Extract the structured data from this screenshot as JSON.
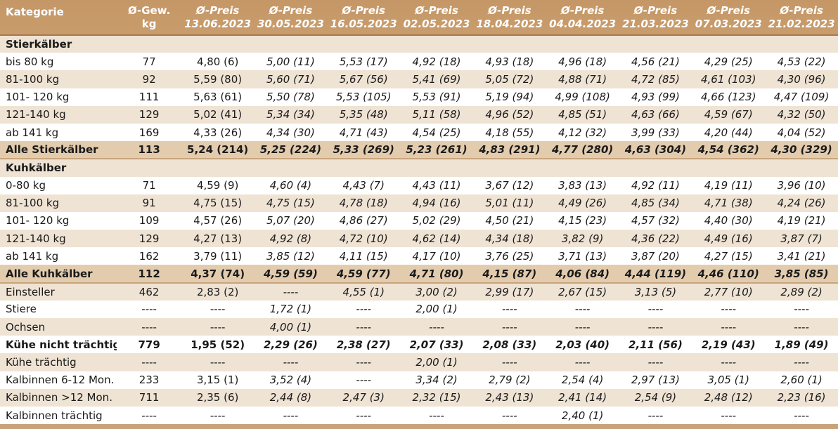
{
  "header": {
    "kategorie": "Kategorie",
    "gew_line1": "Ø-Gew.",
    "gew_line2": "kg",
    "preis_label": "Ø-Preis",
    "dates": [
      "13.06.2023",
      "30.05.2023",
      "16.05.2023",
      "02.05.2023",
      "18.04.2023",
      "04.04.2023",
      "21.03.2023",
      "07.03.2023",
      "21.02.2023"
    ]
  },
  "rows": [
    {
      "type": "section",
      "label": "Stierkälber",
      "gew": "",
      "values": [
        "",
        "",
        "",
        "",
        "",
        "",
        "",
        "",
        ""
      ]
    },
    {
      "type": "odd",
      "label": "bis 80 kg",
      "gew": "77",
      "values": [
        "4,80 (6)",
        "5,00 (11)",
        "5,53 (17)",
        "4,92 (18)",
        "4,93 (18)",
        "4,96 (18)",
        "4,56 (21)",
        "4,29 (25)",
        "4,53 (22)"
      ]
    },
    {
      "type": "even",
      "label": "81-100 kg",
      "gew": "92",
      "values": [
        "5,59 (80)",
        "5,60 (71)",
        "5,67 (56)",
        "5,41 (69)",
        "5,05 (72)",
        "4,88 (71)",
        "4,72 (85)",
        "4,61 (103)",
        "4,30 (96)"
      ]
    },
    {
      "type": "odd",
      "label": "101- 120 kg",
      "gew": "111",
      "values": [
        "5,63 (61)",
        "5,50 (78)",
        "5,53 (105)",
        "5,53 (91)",
        "5,19 (94)",
        "4,99 (108)",
        "4,93 (99)",
        "4,66 (123)",
        "4,47 (109)"
      ]
    },
    {
      "type": "even",
      "label": "121-140 kg",
      "gew": "129",
      "values": [
        "5,02 (41)",
        "5,34 (34)",
        "5,35 (48)",
        "5,11 (58)",
        "4,96 (52)",
        "4,85 (51)",
        "4,63 (66)",
        "4,59 (67)",
        "4,32 (50)"
      ]
    },
    {
      "type": "odd",
      "label": "ab 141 kg",
      "gew": "169",
      "values": [
        "4,33 (26)",
        "4,34 (30)",
        "4,71 (43)",
        "4,54 (25)",
        "4,18 (55)",
        "4,12 (32)",
        "3,99 (33)",
        "4,20 (44)",
        "4,04 (52)"
      ]
    },
    {
      "type": "total",
      "label": "Alle Stierkälber",
      "gew": "113",
      "values": [
        "5,24 (214)",
        "5,25 (224)",
        "5,33 (269)",
        "5,23 (261)",
        "4,83 (291)",
        "4,77 (280)",
        "4,63 (304)",
        "4,54 (362)",
        "4,30 (329)"
      ]
    },
    {
      "type": "section",
      "label": "Kuhkälber",
      "gew": "",
      "values": [
        "",
        "",
        "",
        "",
        "",
        "",
        "",
        "",
        ""
      ]
    },
    {
      "type": "odd",
      "label": "0-80 kg",
      "gew": "71",
      "values": [
        "4,59 (9)",
        "4,60 (4)",
        "4,43 (7)",
        "4,43 (11)",
        "3,67 (12)",
        "3,83 (13)",
        "4,92 (11)",
        "4,19 (11)",
        "3,96 (10)"
      ]
    },
    {
      "type": "even",
      "label": "81-100 kg",
      "gew": "91",
      "values": [
        "4,75 (15)",
        "4,75 (15)",
        "4,78 (18)",
        "4,94 (16)",
        "5,01 (11)",
        "4,49 (26)",
        "4,85 (34)",
        "4,71 (38)",
        "4,24 (26)"
      ]
    },
    {
      "type": "odd",
      "label": "101- 120 kg",
      "gew": "109",
      "values": [
        "4,57 (26)",
        "5,07 (20)",
        "4,86 (27)",
        "5,02 (29)",
        "4,50 (21)",
        "4,15 (23)",
        "4,57 (32)",
        "4,40 (30)",
        "4,19 (21)"
      ]
    },
    {
      "type": "even",
      "label": "121-140 kg",
      "gew": "129",
      "values": [
        "4,27 (13)",
        "4,92 (8)",
        "4,72 (10)",
        "4,62 (14)",
        "4,34 (18)",
        "3,82 (9)",
        "4,36 (22)",
        "4,49 (16)",
        "3,87 (7)"
      ]
    },
    {
      "type": "odd",
      "label": "ab 141 kg",
      "gew": "162",
      "values": [
        "3,79 (11)",
        "3,85 (12)",
        "4,11 (15)",
        "4,17 (10)",
        "3,76 (25)",
        "3,71 (13)",
        "3,87 (20)",
        "4,27 (15)",
        "3,41 (21)"
      ]
    },
    {
      "type": "total",
      "label": "Alle Kuhkälber",
      "gew": "112",
      "values": [
        "4,37 (74)",
        "4,59 (59)",
        "4,59 (77)",
        "4,71 (80)",
        "4,15 (87)",
        "4,06 (84)",
        "4,44 (119)",
        "4,46 (110)",
        "3,85 (85)"
      ]
    },
    {
      "type": "even",
      "label": "Einsteller",
      "gew": "462",
      "values": [
        "2,83 (2)",
        "----",
        "4,55 (1)",
        "3,00 (2)",
        "2,99 (17)",
        "2,67 (15)",
        "3,13 (5)",
        "2,77 (10)",
        "2,89 (2)"
      ]
    },
    {
      "type": "odd",
      "label": "Stiere",
      "gew": "----",
      "values": [
        "----",
        "1,72 (1)",
        "----",
        "2,00 (1)",
        "----",
        "----",
        "----",
        "----",
        "----"
      ]
    },
    {
      "type": "even",
      "label": "Ochsen",
      "gew": "----",
      "values": [
        "----",
        "4,00 (1)",
        "----",
        "----",
        "----",
        "----",
        "----",
        "----",
        "----"
      ]
    },
    {
      "type": "bold",
      "label": "Kühe nicht trächtig",
      "gew": "779",
      "values": [
        "1,95 (52)",
        "2,29 (26)",
        "2,38 (27)",
        "2,07 (33)",
        "2,08 (33)",
        "2,03 (40)",
        "2,11 (56)",
        "2,19 (43)",
        "1,89 (49)"
      ]
    },
    {
      "type": "even",
      "label": "Kühe trächtig",
      "gew": "----",
      "values": [
        "----",
        "----",
        "----",
        "2,00 (1)",
        "----",
        "----",
        "----",
        "----",
        "----"
      ]
    },
    {
      "type": "odd",
      "label": "Kalbinnen 6-12 Mon.",
      "gew": "233",
      "values": [
        "3,15 (1)",
        "3,52 (4)",
        "----",
        "3,34 (2)",
        "2,79 (2)",
        "2,54 (4)",
        "2,97 (13)",
        "3,05 (1)",
        "2,60 (1)"
      ]
    },
    {
      "type": "even",
      "label": "Kalbinnen >12 Mon.",
      "gew": "711",
      "values": [
        "2,35 (6)",
        "2,44 (8)",
        "2,47 (3)",
        "2,32 (15)",
        "2,43 (13)",
        "2,41 (14)",
        "2,54 (9)",
        "2,48 (12)",
        "2,23 (16)"
      ]
    },
    {
      "type": "odd",
      "label": "Kalbinnen trächtig",
      "gew": "----",
      "values": [
        "----",
        "----",
        "----",
        "----",
        "----",
        "2,40 (1)",
        "----",
        "----",
        "----"
      ]
    }
  ]
}
